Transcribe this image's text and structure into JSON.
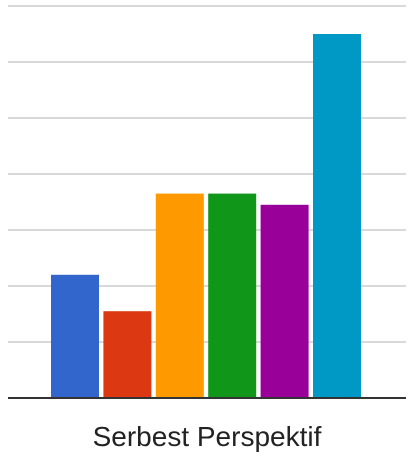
{
  "chart_data": {
    "type": "bar",
    "categories": [
      "Serbest Perspektif"
    ],
    "series": [
      {
        "values": [
          2.2
        ],
        "color": "#3366cc"
      },
      {
        "values": [
          1.55
        ],
        "color": "#dc3912"
      },
      {
        "values": [
          3.65
        ],
        "color": "#ff9900"
      },
      {
        "values": [
          3.65
        ],
        "color": "#109618"
      },
      {
        "values": [
          3.45
        ],
        "color": "#990099"
      },
      {
        "values": [
          6.5
        ],
        "color": "#0099c6"
      }
    ],
    "ylim": [
      0,
      7
    ],
    "grid": true,
    "legend": "none",
    "title": "",
    "xlabel": "",
    "ylabel": ""
  }
}
